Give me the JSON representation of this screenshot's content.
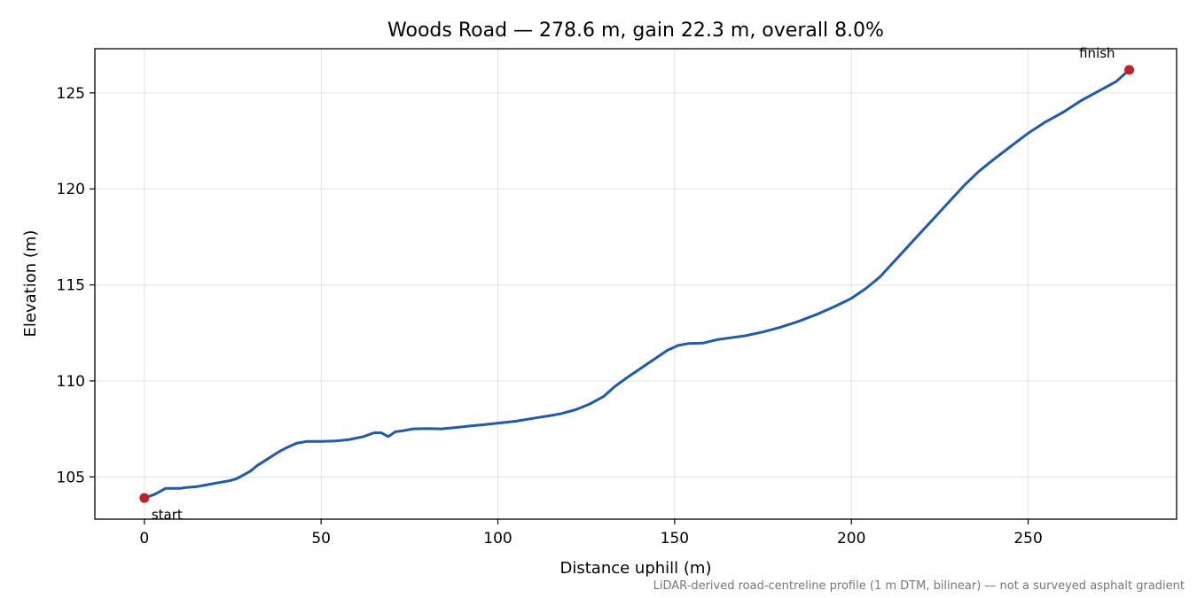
{
  "chart_data": {
    "type": "line",
    "title": "Woods Road — 278.6 m, gain 22.3 m, overall 8.0%",
    "xlabel": "Distance uphill (m)",
    "ylabel": "Elevation (m)",
    "xlim": [
      -14,
      292
    ],
    "ylim": [
      102.8,
      127.3
    ],
    "xticks": [
      0,
      50,
      100,
      150,
      200,
      250
    ],
    "yticks": [
      105,
      110,
      115,
      120,
      125
    ],
    "grid": true,
    "footnote": "LiDAR-derived road-centreline profile (1 m DTM, bilinear) — not a surveyed asphalt gradient",
    "colors": {
      "line": "#1f5aad",
      "marker": "#c0202a"
    },
    "series": [
      {
        "x": [
          0,
          3,
          6,
          8,
          10,
          12,
          15,
          18,
          21,
          24,
          26,
          28,
          30,
          32,
          35,
          38,
          40,
          43,
          46,
          50,
          54,
          58,
          62,
          65,
          67,
          69,
          71,
          73,
          76,
          80,
          84,
          88,
          92,
          96,
          100,
          105,
          110,
          115,
          118,
          122,
          126,
          130,
          133,
          136,
          140,
          144,
          148,
          151,
          154,
          158,
          162,
          166,
          170,
          175,
          180,
          185,
          190,
          195,
          200,
          204,
          208,
          212,
          216,
          220,
          224,
          228,
          232,
          236,
          240,
          245,
          250,
          255,
          260,
          265,
          270,
          275,
          278.6
        ],
        "y": [
          103.9,
          104.1,
          104.4,
          104.4,
          104.4,
          104.45,
          104.5,
          104.6,
          104.7,
          104.8,
          104.9,
          105.1,
          105.3,
          105.6,
          105.95,
          106.3,
          106.5,
          106.75,
          106.85,
          106.85,
          106.87,
          106.95,
          107.1,
          107.3,
          107.3,
          107.1,
          107.35,
          107.4,
          107.5,
          107.52,
          107.5,
          107.57,
          107.65,
          107.72,
          107.8,
          107.9,
          108.05,
          108.2,
          108.3,
          108.5,
          108.8,
          109.2,
          109.7,
          110.1,
          110.6,
          111.1,
          111.6,
          111.85,
          111.95,
          111.97,
          112.15,
          112.25,
          112.35,
          112.55,
          112.8,
          113.1,
          113.45,
          113.85,
          114.3,
          114.8,
          115.4,
          116.2,
          117.0,
          117.8,
          118.6,
          119.4,
          120.2,
          120.9,
          121.5,
          122.2,
          122.9,
          123.5,
          124.0,
          124.6,
          125.1,
          125.6,
          126.2
        ]
      }
    ],
    "annotations": [
      {
        "text": "start",
        "x": 0,
        "y": 103.9
      },
      {
        "text": "finish",
        "x": 278.6,
        "y": 126.2
      }
    ]
  }
}
